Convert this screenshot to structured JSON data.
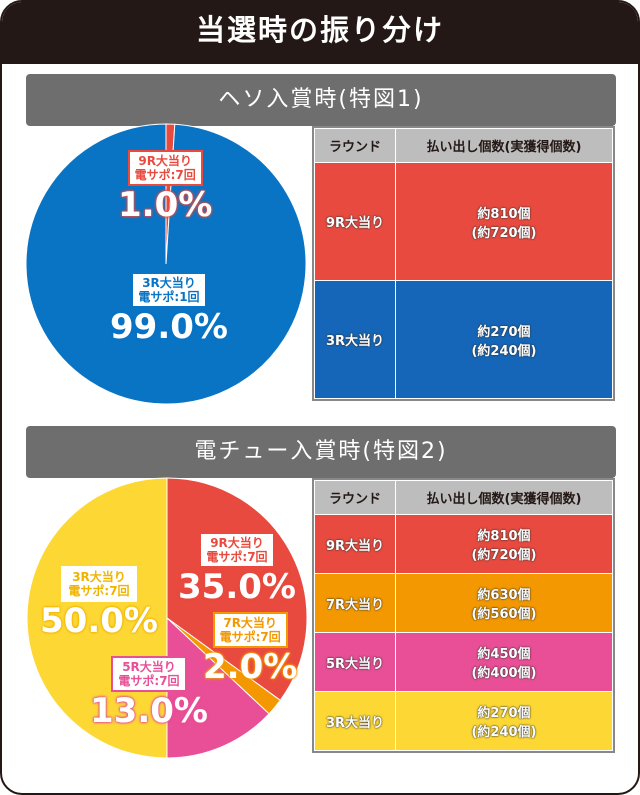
{
  "title": "当選時の振り分け",
  "colors": {
    "red": "#e84a3f",
    "blue": "#0a74c4",
    "orange": "#f39800",
    "pink": "#e84f96",
    "yellow": "#fdd835"
  },
  "sections": [
    {
      "heading": "ヘソ入賞時(特図1)",
      "chart_data": {
        "type": "pie",
        "slices": [
          {
            "label": "9R大当り",
            "sub": "電サポ:7回",
            "value": 1.0,
            "pct": "1.0%",
            "color": "#e84a3f"
          },
          {
            "label": "3R大当り",
            "sub": "電サポ:1回",
            "value": 99.0,
            "pct": "99.0%",
            "color": "#0a74c4"
          }
        ]
      },
      "table": {
        "headers": [
          "ラウンド",
          "払い出し個数(実獲得個数)"
        ],
        "rows": [
          {
            "round": "9R大当り",
            "payout": "約810個",
            "actual": "(約720個)",
            "color": "#e84a3f"
          },
          {
            "round": "3R大当り",
            "payout": "約270個",
            "actual": "(約240個)",
            "color": "#1566b8"
          }
        ]
      }
    },
    {
      "heading": "電チュー入賞時(特図2)",
      "chart_data": {
        "type": "pie",
        "slices": [
          {
            "label": "9R大当り",
            "sub": "電サポ:7回",
            "value": 35.0,
            "pct": "35.0%",
            "color": "#e84a3f"
          },
          {
            "label": "7R大当り",
            "sub": "電サポ:7回",
            "value": 2.0,
            "pct": "2.0%",
            "color": "#f39800"
          },
          {
            "label": "5R大当り",
            "sub": "電サポ:7回",
            "value": 13.0,
            "pct": "13.0%",
            "color": "#e84f96"
          },
          {
            "label": "3R大当り",
            "sub": "電サポ:7回",
            "value": 50.0,
            "pct": "50.0%",
            "color": "#fdd835"
          }
        ]
      },
      "table": {
        "headers": [
          "ラウンド",
          "払い出し個数(実獲得個数)"
        ],
        "rows": [
          {
            "round": "9R大当り",
            "payout": "約810個",
            "actual": "(約720個)",
            "color": "#e84a3f"
          },
          {
            "round": "7R大当り",
            "payout": "約630個",
            "actual": "(約560個)",
            "color": "#f39800"
          },
          {
            "round": "5R大当り",
            "payout": "約450個",
            "actual": "(約400個)",
            "color": "#e84f96"
          },
          {
            "round": "3R大当り",
            "payout": "約270個",
            "actual": "(約240個)",
            "color": "#fdd835"
          }
        ]
      }
    }
  ]
}
